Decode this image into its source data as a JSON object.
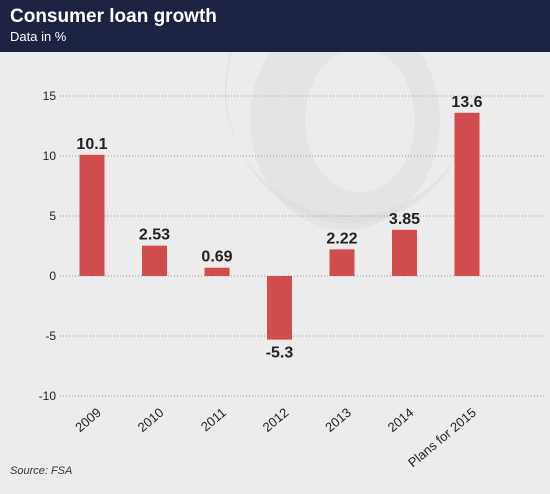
{
  "header": {
    "title": "Consumer loan growth",
    "subtitle": "Data in %"
  },
  "source": "Source: FSA",
  "colors": {
    "bar": "#d14d4d",
    "header_bg": "#1b2242",
    "panel_bg": "#ececec",
    "watermark": "#dcdcdc"
  },
  "chart_data": {
    "type": "bar",
    "categories": [
      "2009",
      "2010",
      "2011",
      "2012",
      "2013",
      "2014",
      "Plans for 2015"
    ],
    "values": [
      10.1,
      2.53,
      0.69,
      -5.3,
      2.22,
      3.85,
      13.6
    ],
    "value_labels": [
      "10.1",
      "2.53",
      "0.69",
      "-5.3",
      "2.22",
      "3.85",
      "13.6"
    ],
    "ylim": [
      -10,
      15
    ],
    "yticks": [
      15,
      10,
      5,
      0,
      -5,
      -10
    ],
    "ytick_labels": [
      "15",
      "10",
      "5",
      "0",
      "-5",
      "-10"
    ],
    "title": "Consumer loan growth",
    "subtitle": "Data in %",
    "xlabel": "",
    "ylabel": "",
    "grid": true
  }
}
